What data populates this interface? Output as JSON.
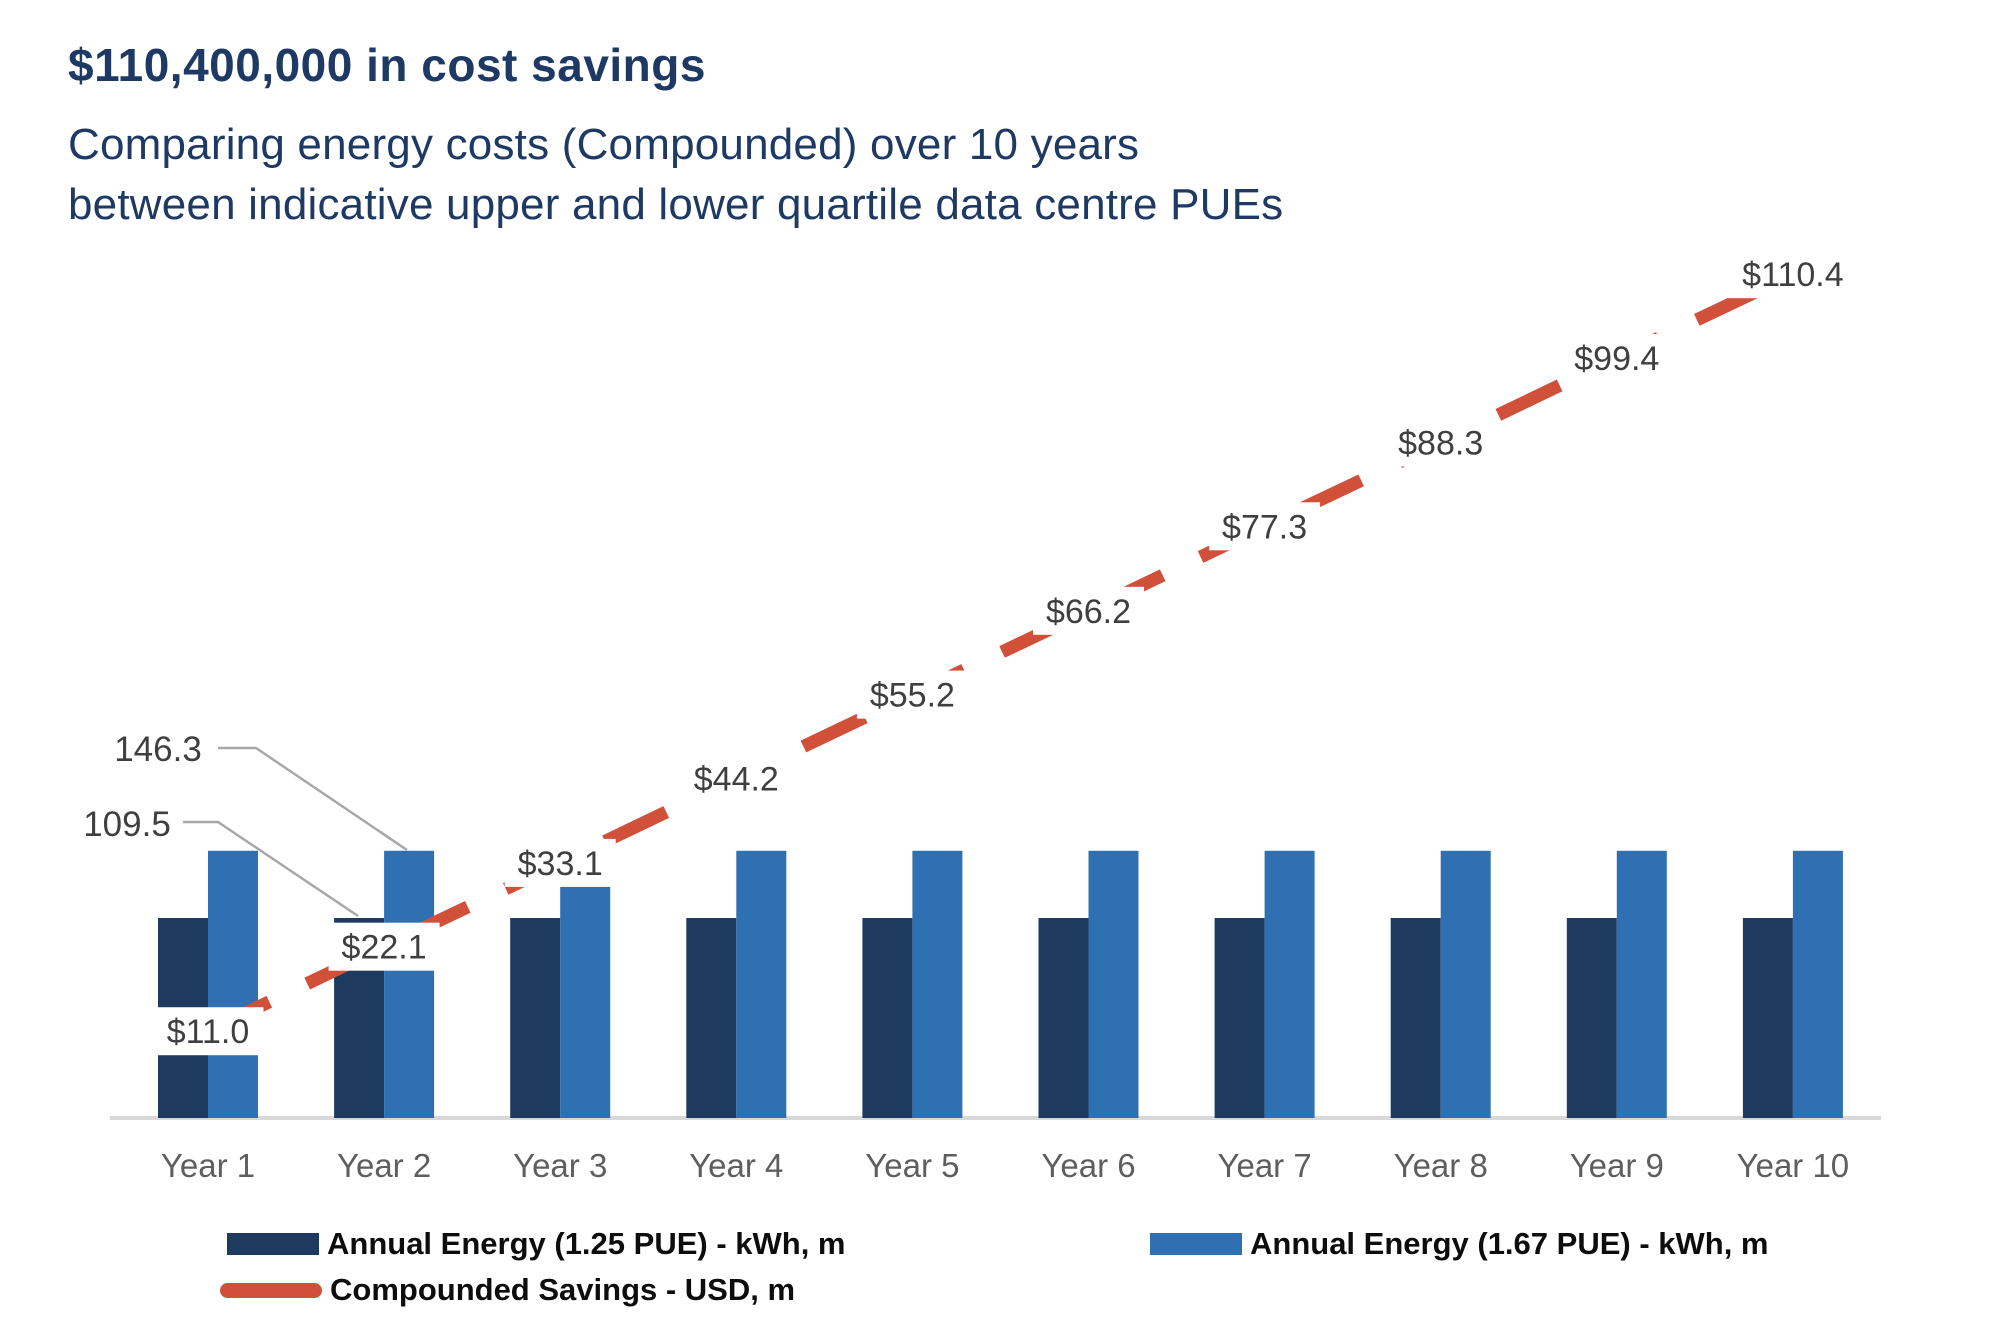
{
  "header": {
    "title": "$110,400,000 in cost savings",
    "subtitle_line1": "Comparing energy costs (Compounded) over 10 years",
    "subtitle_line2": "between indicative upper and lower quartile data centre PUEs"
  },
  "colors": {
    "title_navy": "#1E3A64",
    "bar_dark_blue": "#1F3A5F",
    "bar_light_blue": "#2F70B2",
    "line_red": "#D1503A",
    "axis_line_gray": "#D8D8D8",
    "axis_label_gray": "#5E5E5E",
    "data_label_gray": "#3F3F3F",
    "leader_line_gray": "#A8A8A8",
    "legend_text_black": "#0D0D0D",
    "label_background": "#FFFFFF"
  },
  "legend": {
    "items": [
      {
        "label": "Annual Energy (1.25 PUE) - kWh, m",
        "swatch": "dark-blue-rect"
      },
      {
        "label": "Annual Energy (1.67 PUE) - kWh, m",
        "swatch": "light-blue-rect"
      },
      {
        "label": "Compounded Savings - USD, m",
        "swatch": "red-line"
      }
    ]
  },
  "chart_data": {
    "type": "bar",
    "subtype": "combo-bar-line",
    "title": "$110,400,000 in cost savings",
    "categories": [
      "Year 1",
      "Year 2",
      "Year 3",
      "Year 4",
      "Year 5",
      "Year 6",
      "Year 7",
      "Year 8",
      "Year 9",
      "Year 10"
    ],
    "series": [
      {
        "name": "Annual Energy (1.25 PUE) - kWh, m",
        "render": "bar",
        "color": "#1F3A5F",
        "values": [
          109.5,
          109.5,
          109.5,
          109.5,
          109.5,
          109.5,
          109.5,
          109.5,
          109.5,
          109.5
        ]
      },
      {
        "name": "Annual Energy (1.67 PUE) - kWh, m",
        "render": "bar",
        "color": "#2F70B2",
        "values": [
          146.3,
          146.3,
          146.3,
          146.3,
          146.3,
          146.3,
          146.3,
          146.3,
          146.3,
          146.3
        ]
      },
      {
        "name": "Compounded Savings - USD, m",
        "render": "line",
        "line_style": "dashed",
        "color": "#D1503A",
        "values": [
          11.0,
          22.1,
          33.1,
          44.2,
          55.2,
          66.2,
          77.3,
          88.3,
          99.4,
          110.4
        ],
        "point_labels": [
          "$11.0",
          "$22.1",
          "$33.1",
          "$44.2",
          "$55.2",
          "$66.2",
          "$77.3",
          "$88.3",
          "$99.4",
          "$110.4"
        ]
      }
    ],
    "bar_callouts": [
      {
        "text": "146.3",
        "series_index": 1,
        "category": "Year 2"
      },
      {
        "text": "109.5",
        "series_index": 0,
        "category": "Year 2"
      }
    ],
    "xlabel": "",
    "ylabel": "",
    "axes": {
      "x_line_visible": true,
      "y_axis_visible": false,
      "gridlines": false
    },
    "legend_position": "bottom"
  }
}
